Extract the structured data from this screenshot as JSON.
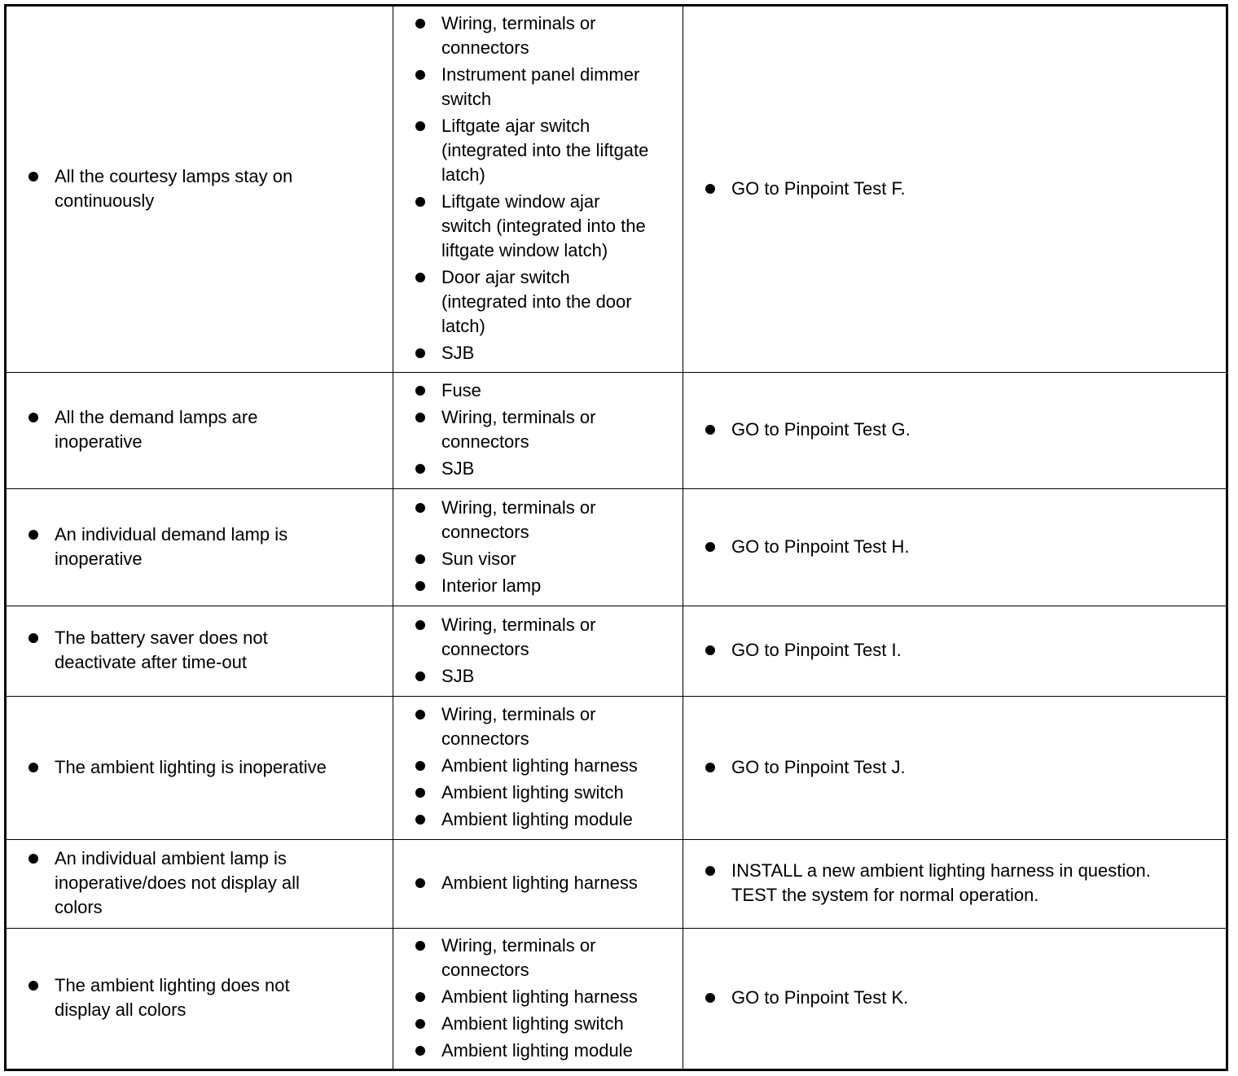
{
  "rows": [
    {
      "condition": "All the courtesy lamps stay on\ncontinuously",
      "sources": [
        "Wiring, terminals or\nconnectors",
        "Instrument panel dimmer\nswitch",
        "Liftgate ajar switch\n(integrated into the liftgate\nlatch)",
        "Liftgate window ajar\nswitch (integrated into the\nliftgate window latch)",
        "Door ajar switch\n(integrated into the door\nlatch)",
        "SJB"
      ],
      "action": "GO to Pinpoint Test F."
    },
    {
      "condition": "All the demand lamps are\ninoperative",
      "sources": [
        "Fuse",
        "Wiring, terminals or\nconnectors",
        "SJB"
      ],
      "action": "GO to Pinpoint Test G."
    },
    {
      "condition": "An individual demand lamp is\ninoperative",
      "sources": [
        "Wiring, terminals or\nconnectors",
        "Sun visor",
        "Interior lamp"
      ],
      "action": "GO to Pinpoint Test H."
    },
    {
      "condition": "The battery saver does not\ndeactivate after time-out",
      "sources": [
        "Wiring, terminals or\nconnectors",
        "SJB"
      ],
      "action": "GO to Pinpoint Test I."
    },
    {
      "condition": "The ambient lighting is inoperative",
      "sources": [
        "Wiring, terminals or\nconnectors",
        "Ambient lighting harness",
        "Ambient lighting switch",
        "Ambient lighting module"
      ],
      "action": "GO to Pinpoint Test J."
    },
    {
      "condition": "An individual ambient lamp is\ninoperative/does not display all\ncolors",
      "sources": [
        "Ambient lighting harness"
      ],
      "action": "INSTALL a new ambient lighting harness in question.\nTEST the system for normal operation."
    },
    {
      "condition": "The ambient lighting does not\ndisplay all colors",
      "sources": [
        "Wiring, terminals or\nconnectors",
        "Ambient lighting harness",
        "Ambient lighting switch",
        "Ambient lighting module"
      ],
      "action": "GO to Pinpoint Test K."
    }
  ]
}
